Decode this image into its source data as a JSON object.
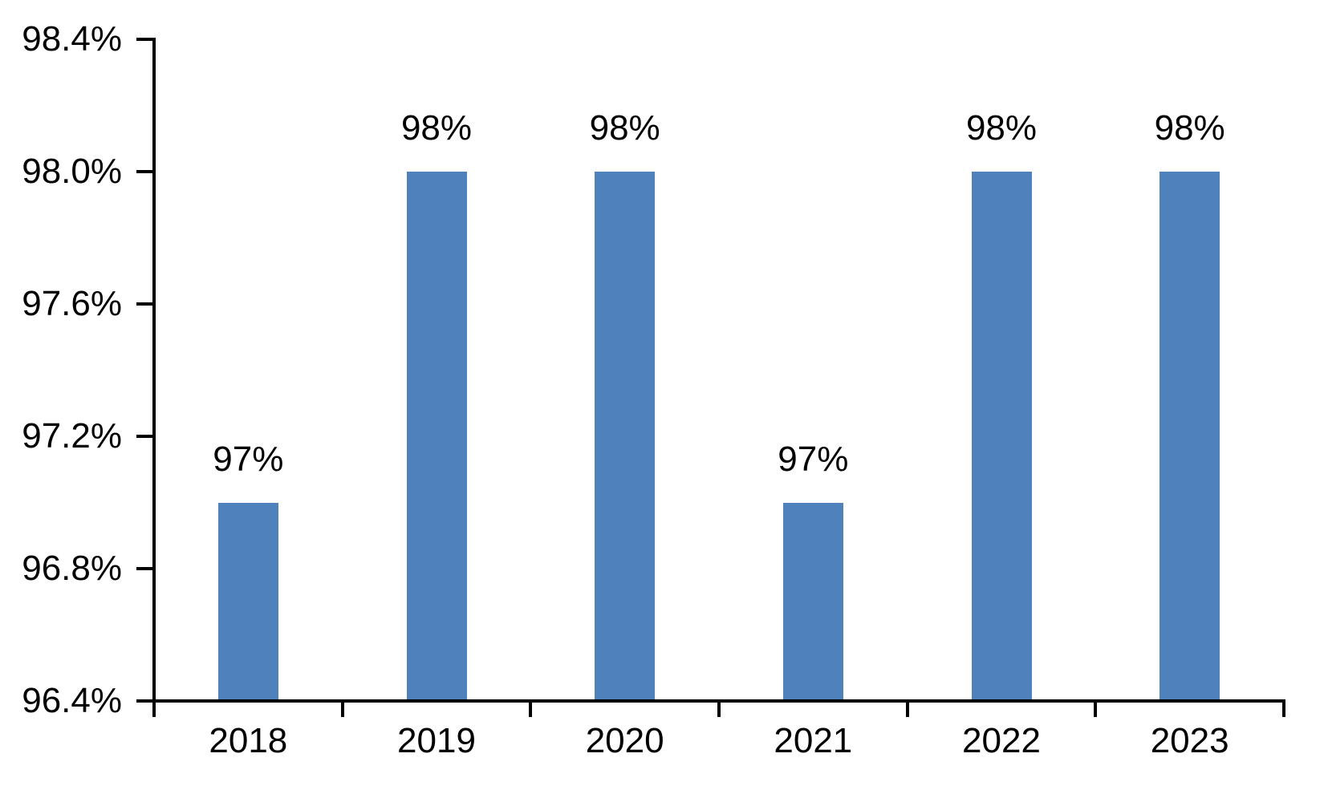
{
  "chart_data": {
    "type": "bar",
    "title": "",
    "xlabel": "",
    "ylabel": "",
    "categories": [
      "2018",
      "2019",
      "2020",
      "2021",
      "2022",
      "2023"
    ],
    "values": [
      97,
      98,
      98,
      97,
      98,
      98
    ],
    "data_labels": [
      "97%",
      "98%",
      "98%",
      "97%",
      "98%",
      "98%"
    ],
    "ylim": [
      96.4,
      98.4
    ],
    "ytick_step": 0.4,
    "ytick_labels": [
      "96.4%",
      "96.8%",
      "97.2%",
      "97.6%",
      "98.0%",
      "98.4%"
    ],
    "grid": false,
    "legend": "none",
    "bar_color": "#4F81BD",
    "axis_color": "#000000",
    "text_color": "#000000",
    "background_color": "#FFFFFF"
  }
}
